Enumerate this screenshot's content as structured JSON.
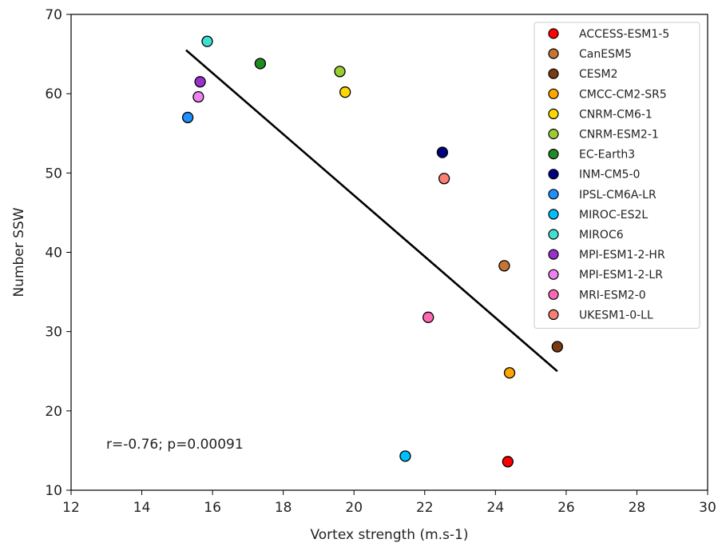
{
  "chart_data": {
    "type": "scatter",
    "xlabel": "Vortex strength (m.s-1)",
    "ylabel": "Number SSW",
    "xlim": [
      12,
      30
    ],
    "ylim": [
      10,
      70
    ],
    "xticks": [
      12,
      14,
      16,
      18,
      20,
      22,
      24,
      26,
      28,
      30
    ],
    "yticks": [
      10,
      20,
      30,
      40,
      50,
      60,
      70
    ],
    "grid": false,
    "legend_position": "top-right",
    "annotation": "r=-0.76; p=0.00091",
    "fit_line": {
      "x": [
        15.25,
        25.75
      ],
      "y": [
        65.5,
        25.0
      ],
      "color": "#000000"
    },
    "series": [
      {
        "name": "ACCESS-ESM1-5",
        "color": "#ff0000",
        "x": 24.35,
        "y": 13.6
      },
      {
        "name": "CanESM5",
        "color": "#c87533",
        "x": 24.25,
        "y": 38.3
      },
      {
        "name": "CESM2",
        "color": "#7b3a10",
        "x": 25.75,
        "y": 28.1
      },
      {
        "name": "CMCC-CM2-SR5",
        "color": "#ffa500",
        "x": 24.4,
        "y": 24.8
      },
      {
        "name": "CNRM-CM6-1",
        "color": "#ffd700",
        "x": 19.75,
        "y": 60.2
      },
      {
        "name": "CNRM-ESM2-1",
        "color": "#9acd32",
        "x": 19.6,
        "y": 62.8
      },
      {
        "name": "EC-Earth3",
        "color": "#228b22",
        "x": 17.35,
        "y": 63.8
      },
      {
        "name": "INM-CM5-0",
        "color": "#000080",
        "x": 22.5,
        "y": 52.6
      },
      {
        "name": "IPSL-CM6A-LR",
        "color": "#1e90ff",
        "x": 15.3,
        "y": 57.0
      },
      {
        "name": "MIROC-ES2L",
        "color": "#00bfff",
        "x": 21.45,
        "y": 14.3
      },
      {
        "name": "MIROC6",
        "color": "#40e0d0",
        "x": 15.85,
        "y": 66.6
      },
      {
        "name": "MPI-ESM1-2-HR",
        "color": "#9932cc",
        "x": 15.65,
        "y": 61.5
      },
      {
        "name": "MPI-ESM1-2-LR",
        "color": "#ee82ee",
        "x": 15.6,
        "y": 59.6
      },
      {
        "name": "MRI-ESM2-0",
        "color": "#ff69b4",
        "x": 22.1,
        "y": 31.8
      },
      {
        "name": "UKESM1-0-LL",
        "color": "#fa8072",
        "x": 22.55,
        "y": 49.3
      }
    ]
  }
}
